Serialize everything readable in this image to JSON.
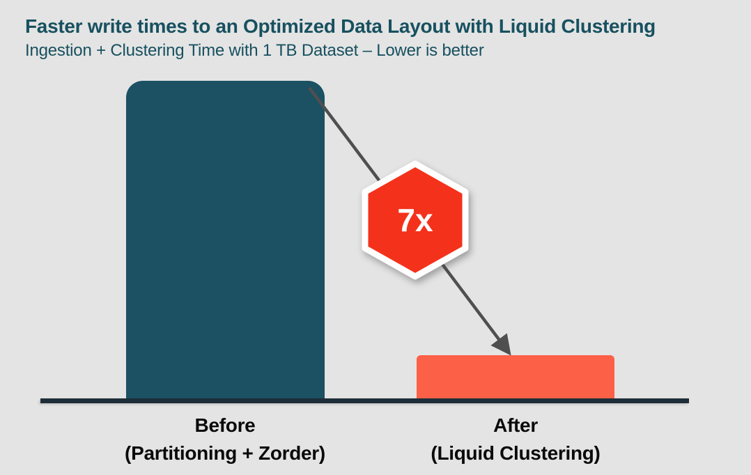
{
  "chart_data": {
    "type": "bar",
    "title": "Faster write times to an Optimized Data Layout with Liquid Clustering",
    "subtitle": "Ingestion + Clustering Time with 1 TB Dataset – Lower is better",
    "categories": [
      "Before (Partitioning + Zorder)",
      "After (Liquid Clustering)"
    ],
    "values": [
      7,
      1
    ],
    "values_unit": "relative ingestion + clustering time (lower is better)",
    "series": [
      {
        "name": "Ingestion + Clustering Time",
        "values": [
          7,
          1
        ]
      }
    ],
    "annotation": "7x",
    "annotation_meaning": "7x faster write times after Liquid Clustering",
    "bar_colors": [
      "#1B5162",
      "#FC6148"
    ],
    "x_labels": [
      {
        "line1": "Before",
        "line2": "(Partitioning + Zorder)"
      },
      {
        "line1": "After",
        "line2": "(Liquid Clustering)"
      }
    ],
    "axes": {
      "y_axis_shown": false,
      "y_tick_labels": [],
      "x_baseline_shown": true
    },
    "legend": "none",
    "grid": "off"
  },
  "colors": {
    "background": "#E4E4E4",
    "title_text": "#17505F",
    "bar_before": "#1B5162",
    "bar_after": "#FC6148",
    "badge_fill": "#F4321C",
    "badge_border": "#FFFFFF",
    "badge_text": "#FFFFFF",
    "baseline": "#1E2E38",
    "arrow": "#4F4F4F",
    "label_text": "#0A0A0A"
  }
}
